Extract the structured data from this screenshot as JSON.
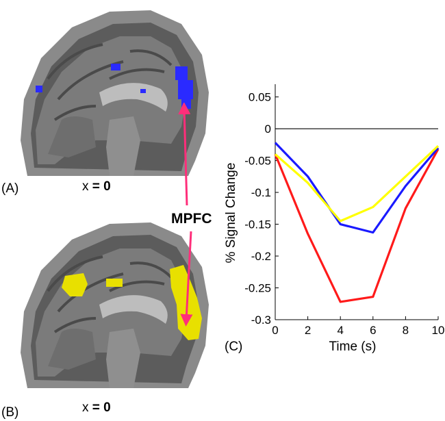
{
  "panels": {
    "a_label": "(A)",
    "b_label": "(B)",
    "c_label": "(C)",
    "a_coord_prefix": "x",
    "a_coord_value": "= 0",
    "b_coord_prefix": "x",
    "b_coord_value": "= 0",
    "region_label": "MPFC"
  },
  "colors": {
    "blue_activation": "#2a2aff",
    "yellow_activation": "#e8e000",
    "arrow": "#ff2e7a"
  },
  "chart_data": {
    "type": "line",
    "xlabel": "Time (s)",
    "ylabel": "% Signal Change",
    "xlim": [
      0,
      10
    ],
    "ylim": [
      -0.3,
      0.07
    ],
    "xticks": [
      "0",
      "2",
      "4",
      "6",
      "8",
      "10"
    ],
    "yticks": [
      "0.05",
      "0",
      "-0.05",
      "-0.1",
      "-0.15",
      "-0.2",
      "-0.25",
      "-0.3"
    ],
    "baseline": 0,
    "x": [
      0,
      2,
      4,
      6,
      8,
      10
    ],
    "series": [
      {
        "color": "#ff1a1a",
        "values": [
          -0.04,
          -0.165,
          -0.272,
          -0.264,
          -0.125,
          -0.032
        ]
      },
      {
        "color": "#1a1aff",
        "values": [
          -0.022,
          -0.075,
          -0.15,
          -0.163,
          -0.09,
          -0.03
        ]
      },
      {
        "color": "#ffff00",
        "values": [
          -0.04,
          -0.085,
          -0.145,
          -0.123,
          -0.075,
          -0.027
        ]
      }
    ]
  }
}
